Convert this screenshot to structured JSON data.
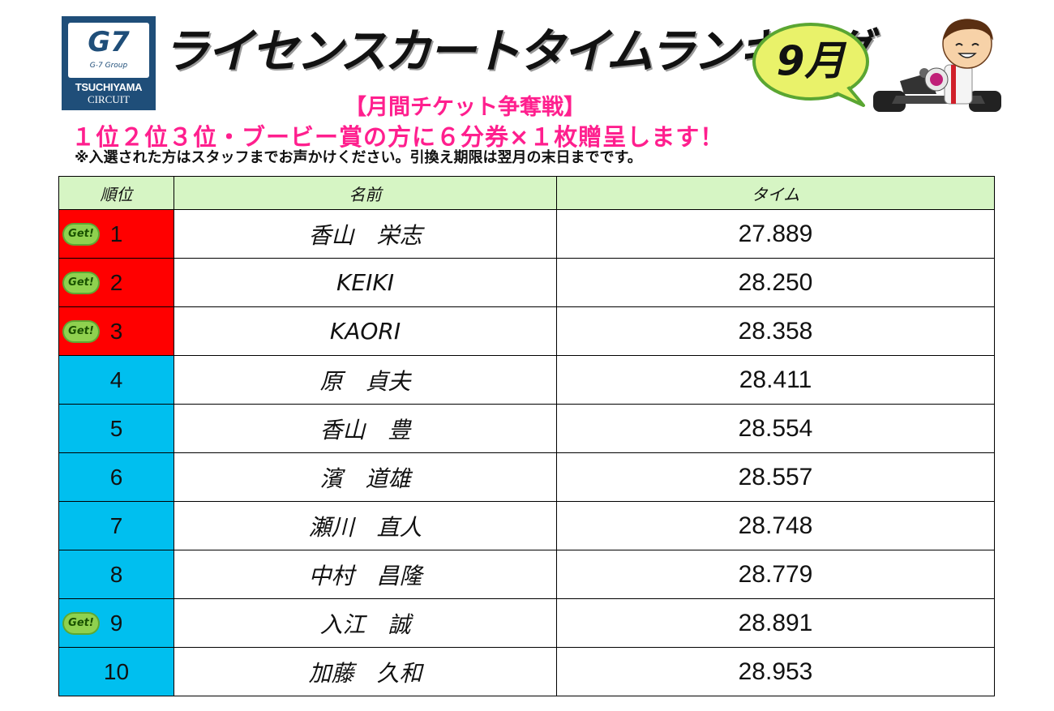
{
  "logo": {
    "mark": "G7",
    "group": "G-7 Group",
    "name": "TSUCHIYAMA",
    "sub": "CIRCUIT"
  },
  "header": {
    "title": "ライセンスカートタイムランキング",
    "month": "9月",
    "subtitle": "【月間チケット争奪戦】",
    "prize": "１位２位３位・ブービー賞の方に６分券×１枚贈呈します！",
    "note": "※入選された方はスタッフまでお声かけください。引換え期限は翌月の末日までです。"
  },
  "table": {
    "headers": [
      "順位",
      "名前",
      "タイム"
    ],
    "badge": "Get!",
    "rows": [
      {
        "rank": "1",
        "name": "香山　栄志",
        "time": "27.889",
        "get": true,
        "color": "#ff0000"
      },
      {
        "rank": "2",
        "name": "KEIKI",
        "time": "28.250",
        "get": true,
        "color": "#ff0000"
      },
      {
        "rank": "3",
        "name": "KAORI",
        "time": "28.358",
        "get": true,
        "color": "#ff0000"
      },
      {
        "rank": "4",
        "name": "原　貞夫",
        "time": "28.411",
        "get": false,
        "color": "#00bfef"
      },
      {
        "rank": "5",
        "name": "香山　豊",
        "time": "28.554",
        "get": false,
        "color": "#00bfef"
      },
      {
        "rank": "6",
        "name": "濱　道雄",
        "time": "28.557",
        "get": false,
        "color": "#00bfef"
      },
      {
        "rank": "7",
        "name": "瀬川　直人",
        "time": "28.748",
        "get": false,
        "color": "#00bfef"
      },
      {
        "rank": "8",
        "name": "中村　昌隆",
        "time": "28.779",
        "get": false,
        "color": "#00bfef"
      },
      {
        "rank": "9",
        "name": "入江　誠",
        "time": "28.891",
        "get": true,
        "color": "#00bfef"
      },
      {
        "rank": "10",
        "name": "加藤　久和",
        "time": "28.953",
        "get": false,
        "color": "#00bfef"
      }
    ]
  }
}
